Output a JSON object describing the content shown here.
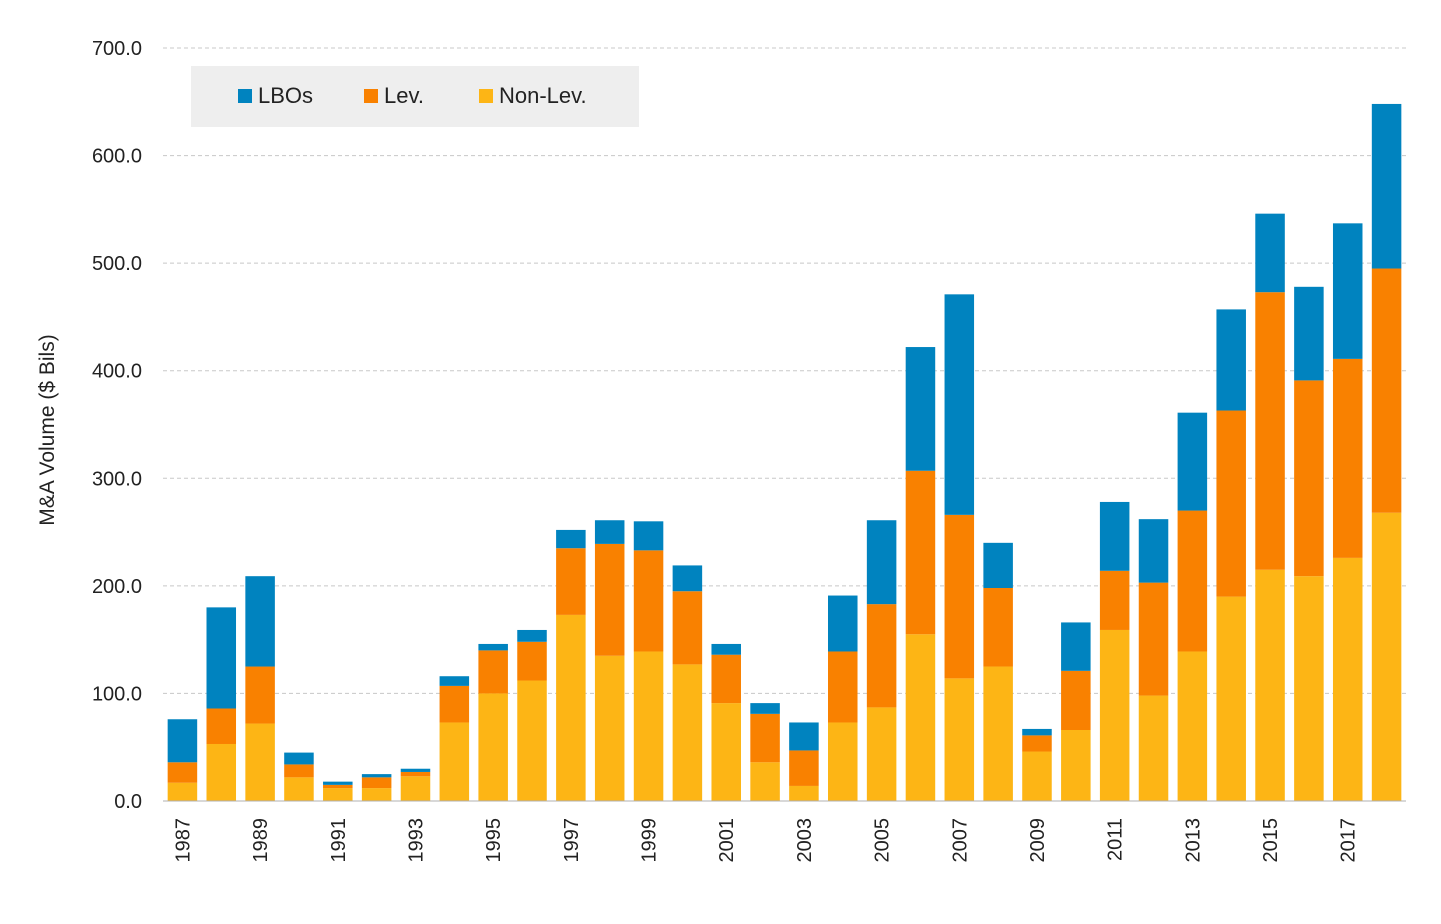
{
  "chart_data": {
    "type": "bar",
    "stacked": true,
    "ylabel": "M&A Volume ($ Bils)",
    "xlabel": "",
    "ylim": [
      0,
      700
    ],
    "yticks": [
      "0.0",
      "100.0",
      "200.0",
      "300.0",
      "400.0",
      "500.0",
      "600.0",
      "700.0"
    ],
    "grid": true,
    "legend_position": "top-left",
    "categories": [
      "1987",
      "1988",
      "1989",
      "1990",
      "1991",
      "1992",
      "1993",
      "1994",
      "1995",
      "1996",
      "1997",
      "1998",
      "1999",
      "2000",
      "2001",
      "2002",
      "2003",
      "2004",
      "2005",
      "2006",
      "2007",
      "2008",
      "2009",
      "2010",
      "2011",
      "2012",
      "2013",
      "2014",
      "2015",
      "2016",
      "2017",
      "2018"
    ],
    "xtick_labels": [
      "1987",
      "",
      "1989",
      "",
      "1991",
      "",
      "1993",
      "",
      "1995",
      "",
      "1997",
      "",
      "1999",
      "",
      "2001",
      "",
      "2003",
      "",
      "2005",
      "",
      "2007",
      "",
      "2009",
      "",
      "2011",
      "",
      "2013",
      "",
      "2015",
      "",
      "2017",
      ""
    ],
    "series": [
      {
        "name": "Non-Lev.",
        "color": "#FDB515",
        "values": [
          17,
          53,
          72,
          22,
          12,
          12,
          23,
          73,
          100,
          112,
          173,
          135,
          139,
          127,
          91,
          36,
          14,
          73,
          87,
          155,
          114,
          125,
          46,
          66,
          159,
          98,
          139,
          190,
          215,
          209,
          226,
          268
        ]
      },
      {
        "name": "Lev.",
        "color": "#F98100",
        "values": [
          19,
          33,
          53,
          12,
          3,
          10,
          4,
          34,
          40,
          36,
          62,
          104,
          94,
          68,
          45,
          45,
          33,
          66,
          96,
          152,
          152,
          73,
          15,
          55,
          55,
          105,
          131,
          173,
          258,
          182,
          185,
          227
        ]
      },
      {
        "name": "LBOs",
        "color": "#0083BF",
        "values": [
          40,
          94,
          84,
          11,
          3,
          3,
          3,
          9,
          6,
          11,
          17,
          22,
          27,
          24,
          10,
          10,
          26,
          52,
          78,
          115,
          205,
          42,
          6,
          45,
          64,
          59,
          91,
          94,
          73,
          87,
          126,
          153
        ]
      }
    ],
    "legend": [
      {
        "name": "LBOs",
        "color": "#0083BF"
      },
      {
        "name": "Lev.",
        "color": "#F98100"
      },
      {
        "name": "Non-Lev.",
        "color": "#FDB515"
      }
    ]
  }
}
